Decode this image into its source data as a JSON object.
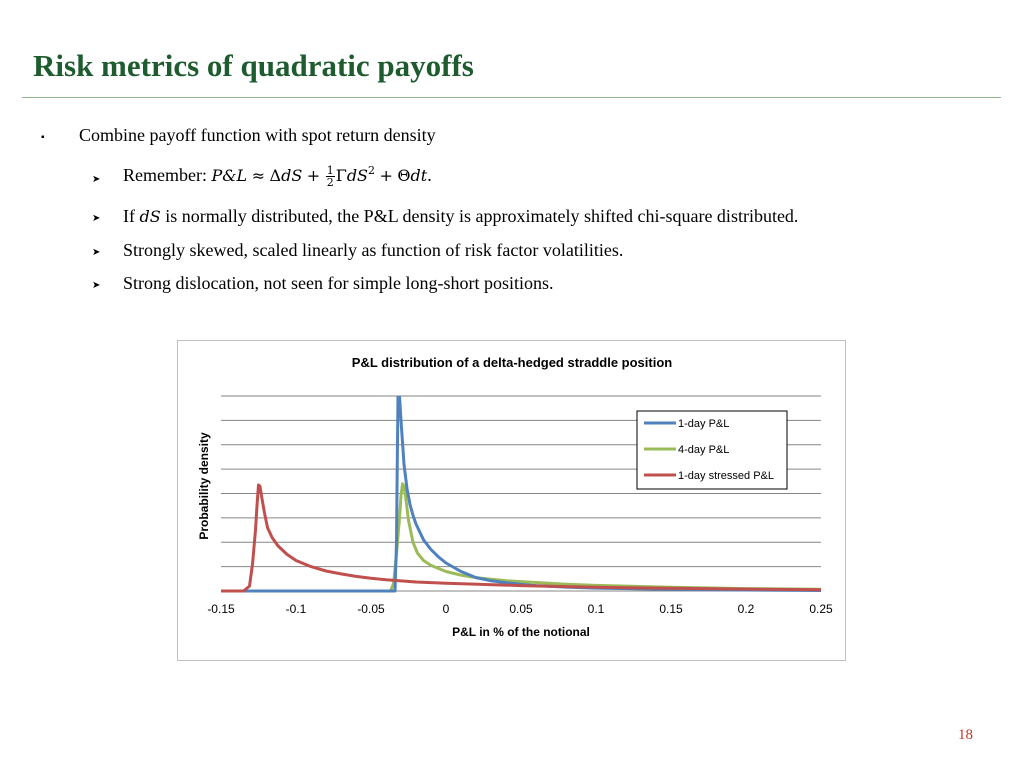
{
  "slide": {
    "title": "Risk metrics of quadratic payoffs",
    "page_number": "18"
  },
  "bullets": {
    "main": "Combine payoff function with spot return density",
    "sub1": {
      "prefix": "Remember: ",
      "formula": {
        "lhs": "P&L",
        "approx": "≈",
        "delta": "Δ",
        "dS": "dS",
        "plus": "+",
        "frac_num": "1",
        "frac_den": "2",
        "gamma": "Γ",
        "dS2": "dS",
        "sq": "2",
        "theta": "Θ",
        "dt": "dt",
        "end": "."
      }
    },
    "sub2": {
      "pre": "If ",
      "var": "dS",
      "post": " is normally distributed, the P&L density is approximately shifted chi-square distributed."
    },
    "sub3": "Strongly skewed, scaled linearly as function of risk factor volatilities.",
    "sub4": "Strong dislocation, not seen for simple long-short positions."
  },
  "chart_data": {
    "type": "line",
    "title": "P&L distribution of a delta-hedged straddle position",
    "xlabel": "P&L in % of the notional",
    "ylabel": "Probability density",
    "xlim": [
      -0.15,
      0.25
    ],
    "ylim": [
      0,
      8
    ],
    "xticks": [
      "-0.15",
      "-0.1",
      "-0.05",
      "0",
      "0.05",
      "0.1",
      "0.15",
      "0.2",
      "0.25"
    ],
    "grid": "horizontal",
    "legend_position": "top-right",
    "series": [
      {
        "name": "1-day P&L",
        "color": "#4f81bd",
        "points": [
          [
            -0.15,
            0
          ],
          [
            -0.034,
            0
          ],
          [
            -0.033,
            2.0
          ],
          [
            -0.0325,
            5.0
          ],
          [
            -0.032,
            8.0
          ],
          [
            -0.031,
            8.0
          ],
          [
            -0.03,
            7.0
          ],
          [
            -0.028,
            5.2
          ],
          [
            -0.026,
            4.2
          ],
          [
            -0.024,
            3.55
          ],
          [
            -0.022,
            3.1
          ],
          [
            -0.02,
            2.75
          ],
          [
            -0.015,
            2.1
          ],
          [
            -0.01,
            1.7
          ],
          [
            -0.005,
            1.4
          ],
          [
            0.0,
            1.15
          ],
          [
            0.01,
            0.8
          ],
          [
            0.02,
            0.55
          ],
          [
            0.03,
            0.42
          ],
          [
            0.04,
            0.34
          ],
          [
            0.05,
            0.27
          ],
          [
            0.06,
            0.22
          ],
          [
            0.08,
            0.16
          ],
          [
            0.1,
            0.12
          ],
          [
            0.15,
            0.07
          ],
          [
            0.2,
            0.04
          ],
          [
            0.25,
            0.02
          ]
        ]
      },
      {
        "name": "4-day P&L",
        "color": "#9bbb59",
        "points": [
          [
            -0.15,
            0
          ],
          [
            -0.037,
            0
          ],
          [
            -0.035,
            0.3
          ],
          [
            -0.033,
            1.5
          ],
          [
            -0.031,
            3.0
          ],
          [
            -0.03,
            3.9
          ],
          [
            -0.029,
            4.4
          ],
          [
            -0.028,
            4.3
          ],
          [
            -0.027,
            3.9
          ],
          [
            -0.025,
            2.9
          ],
          [
            -0.022,
            2.0
          ],
          [
            -0.019,
            1.55
          ],
          [
            -0.015,
            1.25
          ],
          [
            -0.01,
            1.05
          ],
          [
            0.0,
            0.8
          ],
          [
            0.01,
            0.65
          ],
          [
            0.02,
            0.55
          ],
          [
            0.04,
            0.42
          ],
          [
            0.06,
            0.35
          ],
          [
            0.08,
            0.28
          ],
          [
            0.1,
            0.23
          ],
          [
            0.15,
            0.15
          ],
          [
            0.2,
            0.1
          ],
          [
            0.25,
            0.07
          ]
        ]
      },
      {
        "name": "1-day stressed P&L",
        "color": "#c0504d",
        "points": [
          [
            -0.15,
            0
          ],
          [
            -0.135,
            0
          ],
          [
            -0.131,
            0.2
          ],
          [
            -0.129,
            1.1
          ],
          [
            -0.127,
            2.5
          ],
          [
            -0.126,
            3.5
          ],
          [
            -0.125,
            4.35
          ],
          [
            -0.124,
            4.3
          ],
          [
            -0.123,
            3.9
          ],
          [
            -0.121,
            3.2
          ],
          [
            -0.119,
            2.6
          ],
          [
            -0.116,
            2.2
          ],
          [
            -0.112,
            1.85
          ],
          [
            -0.106,
            1.5
          ],
          [
            -0.1,
            1.25
          ],
          [
            -0.09,
            1.0
          ],
          [
            -0.08,
            0.82
          ],
          [
            -0.07,
            0.7
          ],
          [
            -0.06,
            0.6
          ],
          [
            -0.05,
            0.52
          ],
          [
            -0.04,
            0.46
          ],
          [
            -0.02,
            0.37
          ],
          [
            0.0,
            0.32
          ],
          [
            0.05,
            0.22
          ],
          [
            0.1,
            0.15
          ],
          [
            0.15,
            0.11
          ],
          [
            0.2,
            0.08
          ],
          [
            0.25,
            0.05
          ]
        ]
      }
    ]
  }
}
